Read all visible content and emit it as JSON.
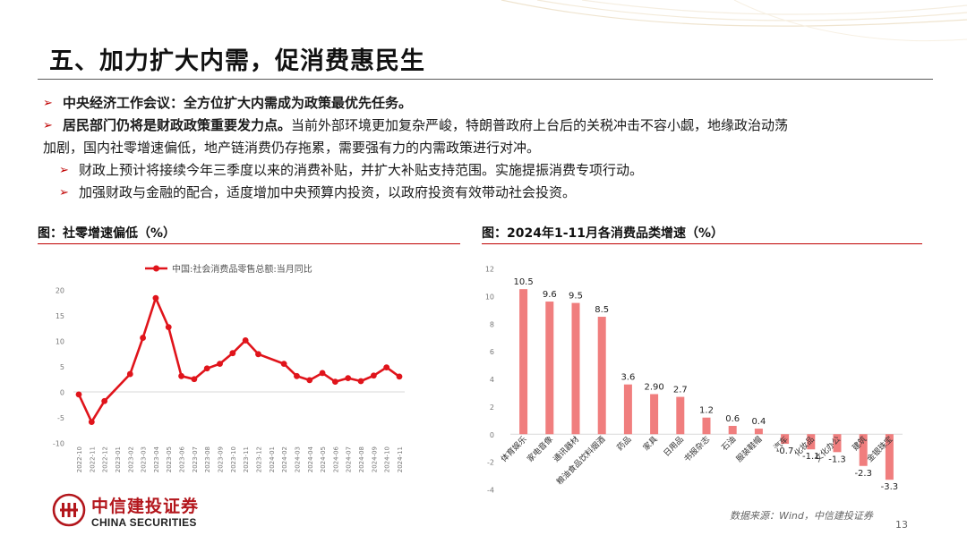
{
  "slide": {
    "title": "五、加力扩大内需，促消费惠民生",
    "bullets": [
      {
        "bold": "中央经济工作会议：全方位扩大内需成为政策最优先任务。",
        "text": ""
      },
      {
        "bold": "居民部门仍将是财政政策重要发力点。",
        "text": "当前外部环境更加复杂严峻，特朗普政府上台后的关税冲击不容小觑，地缘政治动荡",
        "text2": "加剧，国内社零增速偏低，地产链消费仍存拖累，需要强有力的内需政策进行对冲。"
      },
      {
        "text": "财政上预计将接续今年三季度以来的消费补贴，并扩大补贴支持范围。实施提振消费专项行动。"
      },
      {
        "text": "加强财政与金融的配合，适度增加中央预算内投资，以政府投资有效带动社会投资。"
      }
    ],
    "source": "数据来源：Wind，中信建投证券",
    "page_number": "13",
    "logo_cn": "中信建投证券",
    "logo_en": "CHINA SECURITIES",
    "accent_color": "#c00000",
    "line_color": "#e0141b",
    "bar_color": "#f07e7e"
  },
  "chart_data": [
    {
      "type": "line",
      "title": "图：社零增速偏低（%）",
      "series": [
        {
          "name": "中国:社会消费品零售总额:当月同比",
          "x": [
            "2022-10",
            "2022-11",
            "2022-12",
            "2023-01",
            "2023-02",
            "2023-03",
            "2023-04",
            "2023-05",
            "2023-06",
            "2023-07",
            "2023-08",
            "2023-09",
            "2023-10",
            "2023-11",
            "2023-12",
            "2024-01",
            "2024-02",
            "2024-03",
            "2024-04",
            "2024-05",
            "2024-06",
            "2024-07",
            "2024-08",
            "2024-09",
            "2024-10",
            "2024-11"
          ],
          "values": [
            -0.5,
            -5.9,
            -1.8,
            null,
            3.5,
            10.6,
            18.4,
            12.7,
            3.1,
            2.5,
            4.6,
            5.5,
            7.6,
            10.1,
            7.4,
            null,
            5.5,
            3.1,
            2.3,
            3.7,
            2.0,
            2.7,
            2.1,
            3.2,
            4.8,
            3.0
          ]
        }
      ],
      "ylim": [
        -10,
        20
      ],
      "yticks": [
        -10,
        -5,
        0,
        5,
        10,
        15,
        20
      ],
      "legend": "top"
    },
    {
      "type": "bar",
      "title": "图：2024年1-11月各消费品类增速（%）",
      "categories": [
        "体育娱乐",
        "家电音像",
        "通讯器材",
        "粮油食品饮料烟酒",
        "药品",
        "家具",
        "日用品",
        "书报杂志",
        "石油",
        "服装鞋帽",
        "汽车",
        "化妆品",
        "文化办公",
        "建筑",
        "金银珠宝"
      ],
      "values": [
        10.5,
        9.6,
        9.5,
        8.5,
        3.6,
        2.9,
        2.7,
        1.2,
        0.6,
        0.4,
        -0.7,
        -1.1,
        -1.3,
        -2.3,
        -3.3
      ],
      "value_labels": [
        "10.5",
        "9.6",
        "9.5",
        "8.5",
        "3.6",
        "2.90",
        "2.7",
        "1.2",
        "0.6",
        "0.4",
        "-0.7",
        "-1.1",
        "-1.3",
        "-2.3",
        "-3.3"
      ],
      "ylim": [
        -4,
        12
      ],
      "yticks": [
        -4,
        -2,
        0,
        2,
        4,
        6,
        8,
        10,
        12
      ]
    }
  ]
}
